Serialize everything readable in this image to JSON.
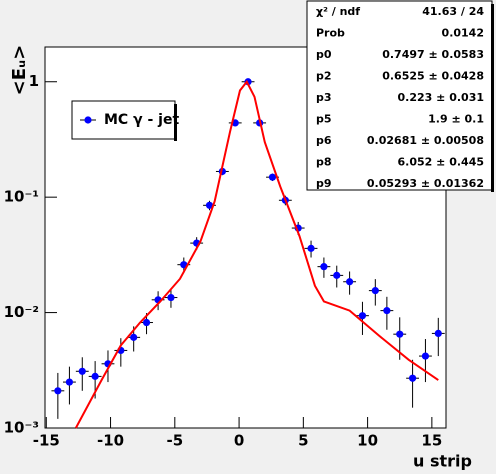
{
  "chart_data": {
    "type": "scatter",
    "x_label": "u strip",
    "y_label": "<Eᵤ>",
    "xlim": [
      -15.1,
      16.1
    ],
    "xticks": [
      -15,
      -10,
      -5,
      0,
      5,
      10,
      15
    ],
    "ylim": [
      0.001,
      2
    ],
    "yticks": [
      {
        "value": 0.001,
        "label": "10⁻³"
      },
      {
        "value": 0.01,
        "label": "10⁻²"
      },
      {
        "value": 0.1,
        "label": "10⁻¹"
      },
      1
    ],
    "log_y": true,
    "series": [
      {
        "name": "MC γ - jet",
        "color": "#0000ff",
        "x": [
          -14.1,
          -13.2,
          -12.2,
          -11.2,
          -10.2,
          -9.2,
          -8.2,
          -7.2,
          -6.3,
          -5.3,
          -4.3,
          -3.3,
          -2.3,
          -1.3,
          -0.3,
          0.7,
          1.6,
          2.6,
          3.6,
          4.6,
          5.6,
          6.6,
          7.6,
          8.6,
          9.6,
          10.6,
          11.5,
          12.5,
          13.5,
          14.5,
          15.5
        ],
        "values": [
          0.0021,
          0.0025,
          0.0031,
          0.0028,
          0.0036,
          0.0047,
          0.0061,
          0.0082,
          0.0129,
          0.0135,
          0.026,
          0.04,
          0.085,
          0.167,
          0.44,
          1.0,
          0.44,
          0.149,
          0.094,
          0.054,
          0.036,
          0.025,
          0.021,
          0.0185,
          0.0094,
          0.0155,
          0.0104,
          0.0065,
          0.0027,
          0.0042,
          0.0066
        ],
        "errors": [
          0.0009,
          0.0009,
          0.001,
          0.001,
          0.0011,
          0.0013,
          0.0015,
          0.0017,
          0.0024,
          0.0025,
          0.004,
          0.005,
          0.008,
          0.012,
          0.02,
          0.03,
          0.02,
          0.011,
          0.009,
          0.007,
          0.006,
          0.005,
          0.0045,
          0.0042,
          0.003,
          0.004,
          0.0033,
          0.0026,
          0.0012,
          0.0017,
          0.0024
        ]
      },
      {
        "color": "#ff0000",
        "line": true,
        "x": [
          -12.7,
          -10.7,
          -9.2,
          -7.7,
          -6.1,
          -4.6,
          -3.0,
          -1.9,
          -0.7,
          0.07,
          0.6,
          1.2,
          2.0,
          3.2,
          4.7,
          5.9,
          6.6,
          8.6,
          10.9,
          13.2,
          15.5
        ],
        "values": [
          0.001,
          0.0026,
          0.0052,
          0.0082,
          0.0126,
          0.0196,
          0.0415,
          0.092,
          0.37,
          0.84,
          1.0,
          0.74,
          0.3,
          0.124,
          0.046,
          0.0171,
          0.0125,
          0.0104,
          0.0063,
          0.0039,
          0.0026
        ]
      }
    ],
    "stats_box": [
      [
        "χ² / ndf",
        "41.63 / 24"
      ],
      [
        "Prob",
        "0.0142"
      ],
      [
        "p0",
        "0.7497 ± 0.0583"
      ],
      [
        "p2",
        "0.6525 ± 0.0428"
      ],
      [
        "p3",
        "0.223 ± 0.031"
      ],
      [
        "p5",
        "1.9 ± 0.1"
      ],
      [
        "p6",
        "0.02681 ± 0.00508"
      ],
      [
        "p8",
        "6.052 ± 0.445"
      ],
      [
        "p9",
        "0.05293 ± 0.01362"
      ]
    ]
  }
}
